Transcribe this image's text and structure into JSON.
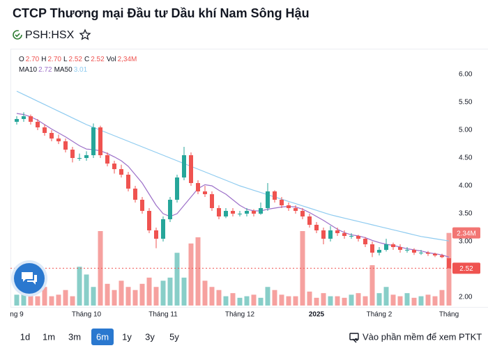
{
  "chart_data": {
    "type": "candlestick",
    "title": "CTCP Thương mại Đầu tư Dầu khí Nam Sông Hậu",
    "ticker": "PSH:HSX",
    "categories": [
      "ng 9",
      null,
      null,
      null,
      null,
      null,
      null,
      null,
      null,
      null,
      "Tháng 10",
      null,
      null,
      null,
      null,
      null,
      null,
      null,
      null,
      null,
      null,
      "Tháng 11",
      null,
      null,
      null,
      null,
      null,
      null,
      null,
      null,
      null,
      null,
      "Tháng 12",
      null,
      null,
      null,
      null,
      null,
      null,
      null,
      null,
      null,
      null,
      "2025",
      null,
      null,
      null,
      null,
      null,
      null,
      null,
      null,
      "Tháng 2",
      null,
      null,
      null,
      null,
      null,
      null,
      null,
      null,
      null,
      "Tháng"
    ],
    "bold_category": "2025",
    "open": [
      5.15,
      5.2,
      5.25,
      5.15,
      5.05,
      4.95,
      4.85,
      4.8,
      4.65,
      4.5,
      4.5,
      4.55,
      5.05,
      4.55,
      4.4,
      4.3,
      4.2,
      3.95,
      3.75,
      3.55,
      3.2,
      3.05,
      3.4,
      3.75,
      4.15,
      4.55,
      4.05,
      3.9,
      3.85,
      3.6,
      3.45,
      3.55,
      3.5,
      3.5,
      3.55,
      3.5,
      3.6,
      3.9,
      3.75,
      3.65,
      3.6,
      3.55,
      3.45,
      3.3,
      3.2,
      3.05,
      3.2,
      3.15,
      3.1,
      3.1,
      3.05,
      2.95,
      2.8,
      2.85,
      2.95,
      2.9,
      2.85,
      2.85,
      2.8,
      2.8,
      2.78,
      2.75,
      2.7
    ],
    "high": [
      5.25,
      5.32,
      5.28,
      5.2,
      5.1,
      5.0,
      4.92,
      4.85,
      4.7,
      4.58,
      4.62,
      5.12,
      5.08,
      4.6,
      4.45,
      4.38,
      4.25,
      4.0,
      3.8,
      3.6,
      3.25,
      3.45,
      3.8,
      4.2,
      4.7,
      4.6,
      4.1,
      4.0,
      3.9,
      3.65,
      3.6,
      3.6,
      3.55,
      3.6,
      3.58,
      3.7,
      4.05,
      3.92,
      3.8,
      3.7,
      3.65,
      3.6,
      3.5,
      3.35,
      3.25,
      3.28,
      3.25,
      3.2,
      3.15,
      3.12,
      3.08,
      3.0,
      2.9,
      3.05,
      2.98,
      2.95,
      2.9,
      2.88,
      2.85,
      2.83,
      2.8,
      2.78,
      2.7
    ],
    "low": [
      5.1,
      5.15,
      5.1,
      5.0,
      4.9,
      4.8,
      4.75,
      4.6,
      4.42,
      4.45,
      4.45,
      4.5,
      4.5,
      4.35,
      4.22,
      4.15,
      3.9,
      3.7,
      3.5,
      3.15,
      2.88,
      3.0,
      3.35,
      3.7,
      4.1,
      4.0,
      3.85,
      3.8,
      3.55,
      3.4,
      3.42,
      3.45,
      3.45,
      3.45,
      3.45,
      3.48,
      3.55,
      3.7,
      3.6,
      3.55,
      3.5,
      3.4,
      3.25,
      3.15,
      2.95,
      3.0,
      3.1,
      3.05,
      3.05,
      3.0,
      2.9,
      2.72,
      2.75,
      2.82,
      2.85,
      2.8,
      2.8,
      2.76,
      2.76,
      2.74,
      2.72,
      2.7,
      2.52
    ],
    "close": [
      5.2,
      5.25,
      5.15,
      5.05,
      4.95,
      4.85,
      4.8,
      4.65,
      4.5,
      4.5,
      4.55,
      5.05,
      4.55,
      4.4,
      4.3,
      4.2,
      3.95,
      3.75,
      3.55,
      3.2,
      3.05,
      3.4,
      3.75,
      4.15,
      4.55,
      4.05,
      3.9,
      3.85,
      3.6,
      3.45,
      3.55,
      3.5,
      3.5,
      3.55,
      3.5,
      3.6,
      3.9,
      3.75,
      3.65,
      3.6,
      3.55,
      3.45,
      3.3,
      3.2,
      3.05,
      3.2,
      3.15,
      3.1,
      3.1,
      3.05,
      2.95,
      2.8,
      2.85,
      2.95,
      2.9,
      2.85,
      2.85,
      2.8,
      2.8,
      2.78,
      2.75,
      2.72,
      2.52
    ],
    "volume": [
      0.35,
      0.4,
      0.5,
      0.3,
      0.6,
      0.3,
      0.35,
      0.5,
      0.3,
      1.25,
      1.0,
      0.6,
      2.4,
      0.7,
      0.5,
      0.8,
      0.6,
      0.5,
      0.7,
      0.9,
      0.6,
      0.8,
      0.9,
      1.7,
      0.9,
      2.0,
      2.2,
      0.8,
      0.6,
      0.5,
      0.3,
      0.4,
      0.25,
      0.3,
      0.35,
      0.25,
      0.6,
      0.5,
      0.35,
      0.3,
      0.3,
      2.4,
      0.45,
      0.25,
      0.4,
      0.3,
      0.3,
      0.25,
      0.35,
      0.4,
      0.3,
      1.3,
      0.4,
      0.6,
      0.35,
      0.3,
      0.4,
      0.25,
      0.3,
      0.35,
      0.3,
      0.5,
      2.34
    ],
    "series": [
      {
        "name": "MA10",
        "color": "#9c6fc8",
        "value_label": "2.72",
        "values": [
          5.3,
          5.28,
          5.24,
          5.18,
          5.1,
          5.02,
          4.95,
          4.88,
          4.8,
          4.72,
          4.66,
          4.65,
          4.63,
          4.58,
          4.52,
          4.45,
          4.35,
          4.2,
          4.05,
          3.85,
          3.65,
          3.5,
          3.45,
          3.5,
          3.65,
          3.8,
          3.95,
          4.02,
          4.0,
          3.92,
          3.85,
          3.75,
          3.65,
          3.58,
          3.55,
          3.55,
          3.58,
          3.6,
          3.62,
          3.63,
          3.62,
          3.58,
          3.52,
          3.45,
          3.38,
          3.3,
          3.22,
          3.16,
          3.12,
          3.1,
          3.07,
          3.02,
          2.98,
          2.95,
          2.93,
          2.9,
          2.87,
          2.85,
          2.83,
          2.8,
          2.78,
          2.76,
          2.72
        ]
      },
      {
        "name": "MA50",
        "color": "#8ecbf0",
        "value_label": "3.01",
        "values": [
          5.7,
          5.64,
          5.58,
          5.52,
          5.46,
          5.4,
          5.34,
          5.28,
          5.22,
          5.16,
          5.1,
          5.05,
          5.0,
          4.95,
          4.9,
          4.85,
          4.8,
          4.75,
          4.7,
          4.65,
          4.6,
          4.55,
          4.5,
          4.45,
          4.4,
          4.35,
          4.3,
          4.25,
          4.2,
          4.15,
          4.1,
          4.05,
          4.0,
          3.96,
          3.92,
          3.88,
          3.84,
          3.8,
          3.76,
          3.72,
          3.68,
          3.64,
          3.6,
          3.56,
          3.52,
          3.48,
          3.45,
          3.42,
          3.39,
          3.36,
          3.33,
          3.3,
          3.27,
          3.24,
          3.21,
          3.18,
          3.15,
          3.12,
          3.09,
          3.07,
          3.05,
          3.03,
          3.01
        ]
      }
    ],
    "ohlc_legend": [
      {
        "label": "O",
        "value": "2.70"
      },
      {
        "label": "H",
        "value": "2.70"
      },
      {
        "label": "L",
        "value": "2.52"
      },
      {
        "label": "C",
        "value": "2.52"
      },
      {
        "label": "Vol",
        "value": "2,34M"
      }
    ],
    "last_price_label": "2.52",
    "last_volume_label": "2.34M",
    "up_color": "#26a69a",
    "down_color": "#ef5350",
    "ylim": [
      1.85,
      6.15
    ],
    "yticks": [
      {
        "value": 2,
        "label": "2.00"
      },
      {
        "value": 2.5,
        "label": "2.50"
      },
      {
        "value": 3,
        "label": "3.00"
      },
      {
        "value": 3.5,
        "label": "3.50"
      },
      {
        "value": 4,
        "label": "4.00"
      },
      {
        "value": 4.5,
        "label": "4.50"
      },
      {
        "value": 5,
        "label": "5.00"
      },
      {
        "value": 5.5,
        "label": "5.50"
      },
      {
        "value": 6,
        "label": "6.00"
      }
    ],
    "grid": false,
    "ranges": [
      "1d",
      "1m",
      "3m",
      "6m",
      "1y",
      "3y",
      "5y"
    ],
    "active_range": "6m",
    "link_text": "Vào phần mềm để xem PTKT"
  }
}
